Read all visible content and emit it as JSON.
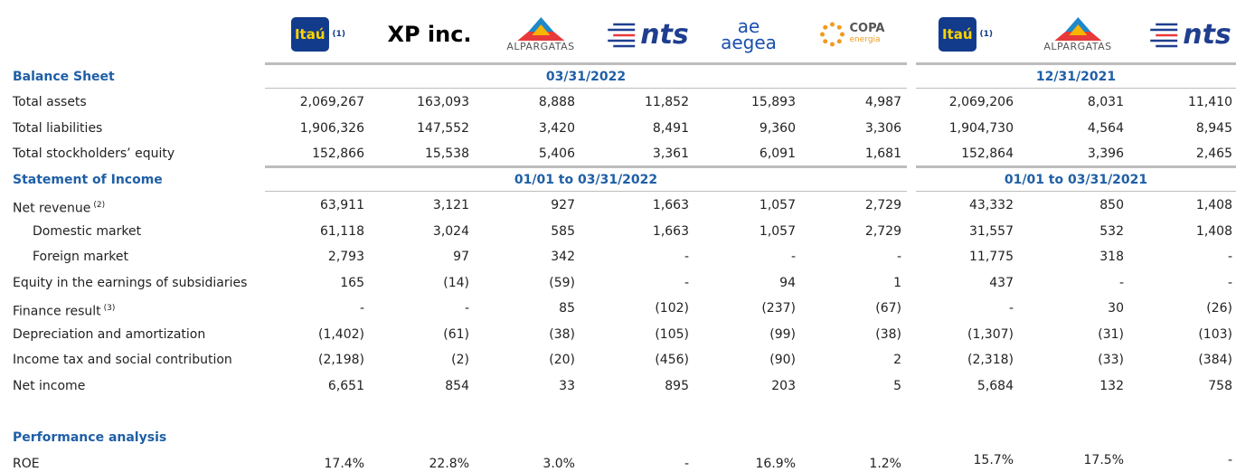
{
  "logos": [
    {
      "name": "Itaú",
      "note": "(1)"
    },
    {
      "name": "XP inc."
    },
    {
      "name": "ALPARGATAS"
    },
    {
      "name": "nts"
    },
    {
      "name": "aegea",
      "sub": "ae"
    },
    {
      "name": "COPA",
      "sub": "energia"
    },
    {
      "name": "Itaú",
      "note": "(1)"
    },
    {
      "name": "ALPARGATAS"
    },
    {
      "name": "nts"
    }
  ],
  "rows": [
    {
      "label": "Balance Sheet",
      "periods": [
        "03/31/2022",
        "12/31/2021"
      ]
    },
    {
      "label": "Total assets",
      "values": [
        "2,069,267",
        "163,093",
        "8,888",
        "11,852",
        "15,893",
        "4,987",
        "2,069,206",
        "8,031",
        "11,410"
      ]
    },
    {
      "label": "Total liabilities",
      "values": [
        "1,906,326",
        "147,552",
        "3,420",
        "8,491",
        "9,360",
        "3,306",
        "1,904,730",
        "4,564",
        "8,945"
      ]
    },
    {
      "label": "Total stockholders’ equity",
      "values": [
        "152,866",
        "15,538",
        "5,406",
        "3,361",
        "6,091",
        "1,681",
        "152,864",
        "3,396",
        "2,465"
      ]
    },
    {
      "label": "Statement of Income",
      "periods": [
        "01/01 to 03/31/2022",
        "01/01 to 03/31/2021"
      ]
    },
    {
      "label": "Net revenue",
      "note": "(2)",
      "values": [
        "63,911",
        "3,121",
        "927",
        "1,663",
        "1,057",
        "2,729",
        "43,332",
        "850",
        "1,408"
      ]
    },
    {
      "label": "Domestic market",
      "indent": true,
      "values": [
        "61,118",
        "3,024",
        "585",
        "1,663",
        "1,057",
        "2,729",
        "31,557",
        "532",
        "1,408"
      ]
    },
    {
      "label": "Foreign market",
      "indent": true,
      "values": [
        "2,793",
        "97",
        "342",
        "-",
        "-",
        "-",
        "11,775",
        "318",
        "-"
      ]
    },
    {
      "label": "Equity in the earnings of subsidiaries",
      "values": [
        "165",
        "(14)",
        "(59)",
        "-",
        "94",
        "1",
        "437",
        "-",
        "-"
      ]
    },
    {
      "label": "Finance result",
      "note": "(3)",
      "values": [
        "-",
        "-",
        "85",
        "(102)",
        "(237)",
        "(67)",
        "-",
        "30",
        "(26)"
      ]
    },
    {
      "label": "Depreciation and amortization",
      "values": [
        "(1,402)",
        "(61)",
        "(38)",
        "(105)",
        "(99)",
        "(38)",
        "(1,307)",
        "(31)",
        "(103)"
      ]
    },
    {
      "label": "Income tax and social contribution",
      "values": [
        "(2,198)",
        "(2)",
        "(20)",
        "(456)",
        "(90)",
        "2",
        "(2,318)",
        "(33)",
        "(384)"
      ]
    },
    {
      "label": "Net income",
      "values": [
        "6,651",
        "854",
        "33",
        "895",
        "203",
        "5",
        "5,684",
        "132",
        "758"
      ]
    },
    {
      "label": "Performance analysis"
    },
    {
      "label": "ROE",
      "values": [
        "17.4%",
        "22.8%",
        "3.0%",
        "-",
        "16.9%",
        "1.2%",
        "15.7%",
        "17.5%",
        "-"
      ]
    }
  ]
}
